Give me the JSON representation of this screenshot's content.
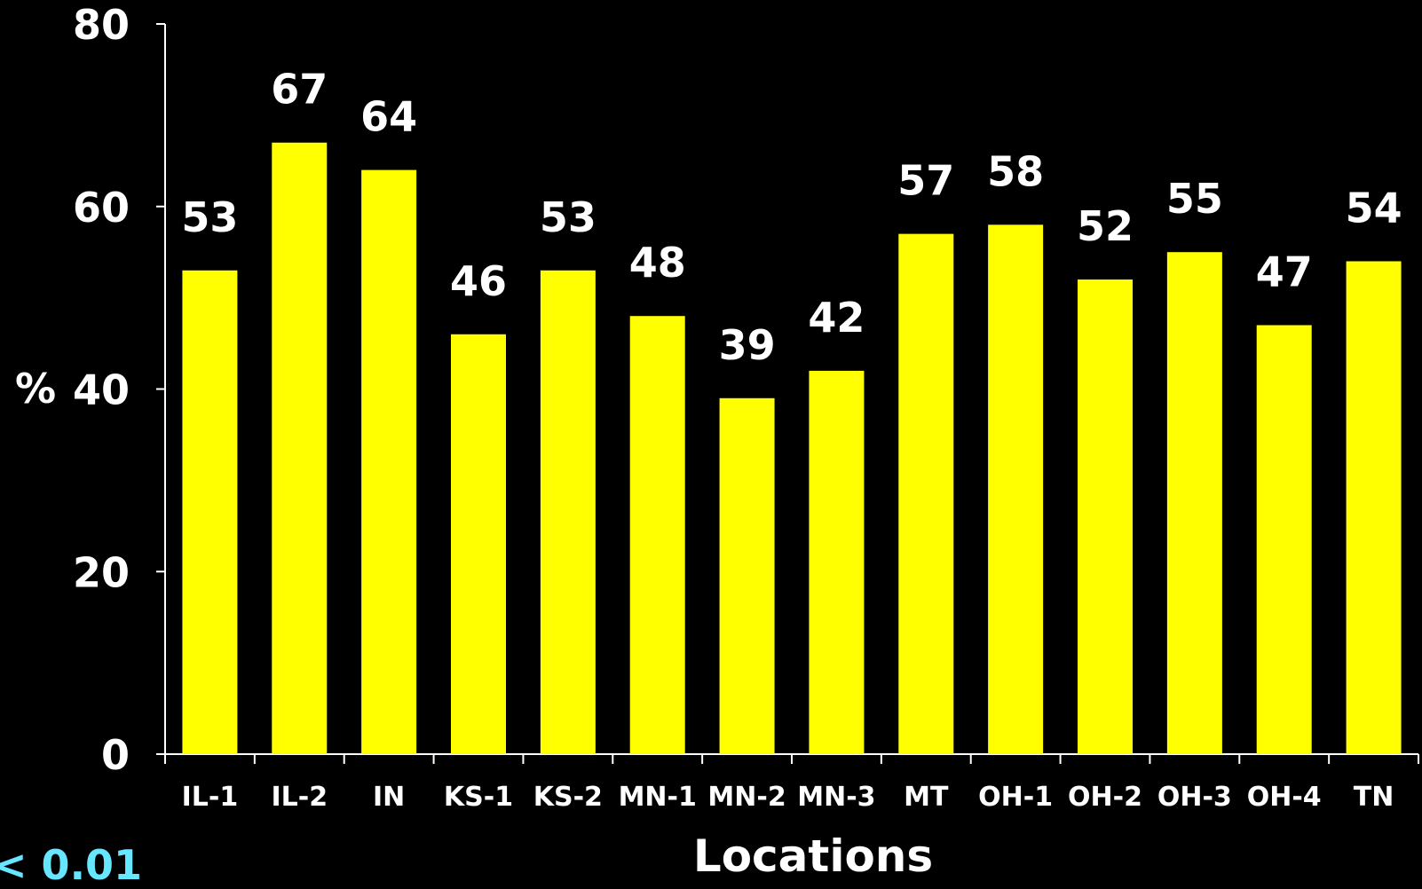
{
  "chart_data": {
    "type": "bar",
    "categories": [
      "IL-1",
      "IL-2",
      "IN",
      "KS-1",
      "KS-2",
      "MN-1",
      "MN-2",
      "MN-3",
      "MT",
      "OH-1",
      "OH-2",
      "OH-3",
      "OH-4",
      "TN"
    ],
    "values": [
      53,
      67,
      64,
      46,
      53,
      48,
      39,
      42,
      57,
      58,
      52,
      55,
      47,
      54
    ],
    "data_labels": [
      "53",
      "67",
      "64",
      "46",
      "53",
      "48",
      "39",
      "42",
      "57",
      "58",
      "52",
      "55",
      "47",
      "54"
    ],
    "xlabel": "Locations",
    "ylabel": "%",
    "ylim": [
      0,
      80
    ],
    "yticks": [
      0,
      20,
      40,
      60,
      80
    ],
    "ytick_labels": [
      "0",
      "20",
      "40",
      "60",
      "80"
    ],
    "grid": false,
    "bar_color": "#ffff00",
    "background_color": "#000000",
    "text_color": "#ffffff"
  },
  "footnote": "< 0.01",
  "footnote_color": "#66e6ff"
}
